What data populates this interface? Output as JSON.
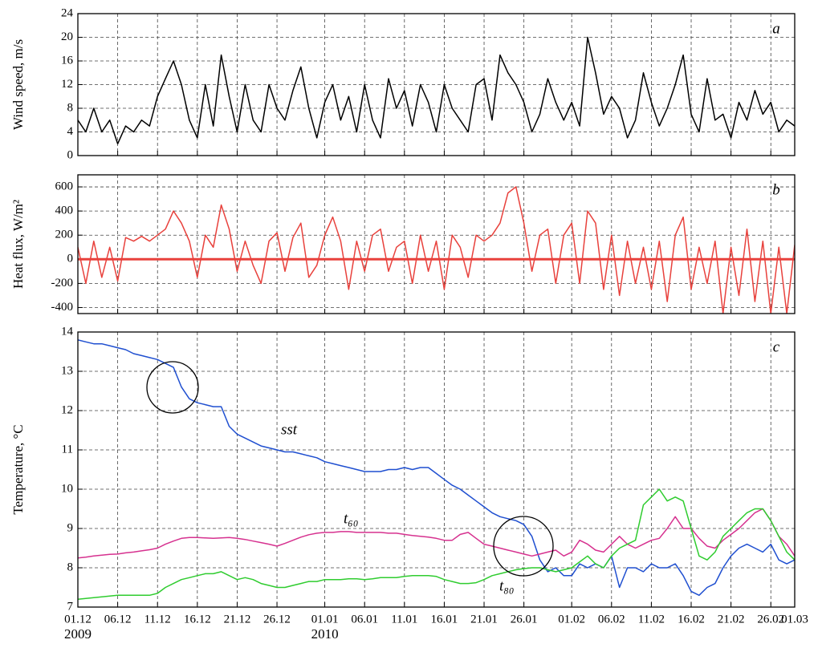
{
  "chart_data": [
    {
      "type": "line",
      "panel_label": "a",
      "ylabel": "Wind speed, m/s",
      "ylim": [
        0,
        24
      ],
      "yticks": [
        0,
        4,
        8,
        12,
        16,
        20,
        24
      ],
      "grid": true,
      "series": [
        {
          "color": "#000000",
          "values": [
            6,
            4,
            8,
            4,
            6,
            2,
            5,
            4,
            6,
            5,
            10,
            13,
            16,
            12,
            6,
            3,
            12,
            5,
            17,
            10,
            4,
            12,
            6,
            4,
            12,
            8,
            6,
            11,
            15,
            8,
            3,
            9,
            12,
            6,
            10,
            4,
            12,
            6,
            3,
            13,
            8,
            11,
            5,
            12,
            9,
            4,
            12,
            8,
            6,
            4,
            12,
            13,
            6,
            17,
            14,
            12,
            9,
            4,
            7,
            13,
            9,
            6,
            9,
            5,
            20,
            14,
            7,
            10,
            8,
            3,
            6,
            14,
            9,
            5,
            8,
            12,
            17,
            7,
            4,
            13,
            6,
            7,
            3,
            9,
            6,
            11,
            7,
            9,
            4,
            6,
            5
          ]
        }
      ]
    },
    {
      "type": "line",
      "panel_label": "b",
      "ylabel": "Heat flux, W/m²",
      "ylim": [
        -450,
        700
      ],
      "yticks": [
        -400,
        -200,
        0,
        200,
        400,
        600
      ],
      "grid": true,
      "reference_line": 0,
      "series": [
        {
          "color": "#e8413c",
          "values": [
            100,
            -200,
            150,
            -150,
            100,
            -180,
            180,
            150,
            190,
            150,
            200,
            250,
            400,
            300,
            150,
            -150,
            200,
            100,
            450,
            250,
            -100,
            150,
            -50,
            -200,
            150,
            220,
            -100,
            180,
            300,
            -150,
            -50,
            200,
            350,
            150,
            -250,
            150,
            -100,
            200,
            250,
            -100,
            100,
            150,
            -200,
            200,
            -100,
            150,
            -250,
            200,
            100,
            -150,
            200,
            150,
            200,
            300,
            550,
            600,
            300,
            -100,
            200,
            250,
            -200,
            200,
            300,
            -200,
            400,
            300,
            -250,
            200,
            -300,
            150,
            -200,
            100,
            -250,
            150,
            -350,
            200,
            350,
            -250,
            100,
            -200,
            150,
            -450,
            100,
            -300,
            250,
            -350,
            150,
            -450,
            100,
            -450,
            120
          ]
        }
      ]
    },
    {
      "type": "line",
      "panel_label": "c",
      "ylabel": "Temperature, °C",
      "ylim": [
        7,
        14
      ],
      "yticks": [
        7,
        8,
        9,
        10,
        11,
        12,
        13,
        14
      ],
      "grid": true,
      "xlim": [
        "2009-12-01",
        "2010-03-01"
      ],
      "xticks": [
        {
          "value": "2009-12-01",
          "label": "01.12"
        },
        {
          "value": "2009-12-06",
          "label": "06.12"
        },
        {
          "value": "2009-12-11",
          "label": "11.12"
        },
        {
          "value": "2009-12-16",
          "label": "16.12"
        },
        {
          "value": "2009-12-21",
          "label": "21.12"
        },
        {
          "value": "2009-12-26",
          "label": "26.12"
        },
        {
          "value": "2010-01-01",
          "label": "01.01"
        },
        {
          "value": "2010-01-06",
          "label": "06.01"
        },
        {
          "value": "2010-01-11",
          "label": "11.01"
        },
        {
          "value": "2010-01-16",
          "label": "16.01"
        },
        {
          "value": "2010-01-21",
          "label": "21.01"
        },
        {
          "value": "2010-01-26",
          "label": "26.01"
        },
        {
          "value": "2010-02-01",
          "label": "01.02"
        },
        {
          "value": "2010-02-06",
          "label": "06.02"
        },
        {
          "value": "2010-02-11",
          "label": "11.02"
        },
        {
          "value": "2010-02-16",
          "label": "16.02"
        },
        {
          "value": "2010-02-21",
          "label": "21.02"
        },
        {
          "value": "2010-02-26",
          "label": "26.02"
        },
        {
          "value": "2010-03-01",
          "label": "01.03"
        }
      ],
      "year_labels": [
        {
          "value": "2009-12-01",
          "label": "2009"
        },
        {
          "value": "2010-01-01",
          "label": "2010"
        }
      ],
      "x": [
        "2009-12-01",
        "2009-12-02",
        "2009-12-03",
        "2009-12-04",
        "2009-12-05",
        "2009-12-06",
        "2009-12-07",
        "2009-12-08",
        "2009-12-09",
        "2009-12-10",
        "2009-12-11",
        "2009-12-12",
        "2009-12-13",
        "2009-12-14",
        "2009-12-15",
        "2009-12-16",
        "2009-12-17",
        "2009-12-18",
        "2009-12-19",
        "2009-12-20",
        "2009-12-21",
        "2009-12-22",
        "2009-12-23",
        "2009-12-24",
        "2009-12-25",
        "2009-12-26",
        "2009-12-27",
        "2009-12-28",
        "2009-12-29",
        "2009-12-30",
        "2009-12-31",
        "2010-01-01",
        "2010-01-02",
        "2010-01-03",
        "2010-01-04",
        "2010-01-05",
        "2010-01-06",
        "2010-01-07",
        "2010-01-08",
        "2010-01-09",
        "2010-01-10",
        "2010-01-11",
        "2010-01-12",
        "2010-01-13",
        "2010-01-14",
        "2010-01-15",
        "2010-01-16",
        "2010-01-17",
        "2010-01-18",
        "2010-01-19",
        "2010-01-20",
        "2010-01-21",
        "2010-01-22",
        "2010-01-23",
        "2010-01-24",
        "2010-01-25",
        "2010-01-26",
        "2010-01-27",
        "2010-01-28",
        "2010-01-29",
        "2010-01-30",
        "2010-01-31",
        "2010-02-01",
        "2010-02-02",
        "2010-02-03",
        "2010-02-04",
        "2010-02-05",
        "2010-02-06",
        "2010-02-07",
        "2010-02-08",
        "2010-02-09",
        "2010-02-10",
        "2010-02-11",
        "2010-02-12",
        "2010-02-13",
        "2010-02-14",
        "2010-02-15",
        "2010-02-16",
        "2010-02-17",
        "2010-02-18",
        "2010-02-19",
        "2010-02-20",
        "2010-02-21",
        "2010-02-22",
        "2010-02-23",
        "2010-02-24",
        "2010-02-25",
        "2010-02-26",
        "2010-02-27",
        "2010-02-28",
        "2010-03-01"
      ],
      "series": [
        {
          "name": "sst",
          "color": "#1f4fd0",
          "values": [
            13.8,
            13.75,
            13.7,
            13.7,
            13.65,
            13.6,
            13.55,
            13.45,
            13.4,
            13.35,
            13.3,
            13.2,
            13.1,
            12.6,
            12.3,
            12.2,
            12.15,
            12.1,
            12.1,
            11.6,
            11.4,
            11.3,
            11.2,
            11.1,
            11.05,
            11.0,
            10.95,
            10.95,
            10.9,
            10.85,
            10.8,
            10.7,
            10.65,
            10.6,
            10.55,
            10.5,
            10.45,
            10.45,
            10.45,
            10.5,
            10.5,
            10.55,
            10.5,
            10.55,
            10.55,
            10.4,
            10.25,
            10.1,
            10.0,
            9.85,
            9.7,
            9.55,
            9.4,
            9.3,
            9.25,
            9.2,
            9.1,
            8.8,
            8.2,
            7.9,
            8.0,
            7.8,
            7.8,
            8.1,
            8.0,
            8.1,
            8.0,
            8.3,
            7.5,
            8.0,
            8.0,
            7.9,
            8.1,
            8.0,
            8.0,
            8.1,
            7.8,
            7.4,
            7.3,
            7.5,
            7.6,
            8.0,
            8.3,
            8.5,
            8.6,
            8.5,
            8.4,
            8.6,
            8.2,
            8.1,
            8.2
          ]
        },
        {
          "name": "t₆₀",
          "color": "#d6318f",
          "values": [
            8.25,
            8.27,
            8.3,
            8.32,
            8.34,
            8.35,
            8.38,
            8.4,
            8.43,
            8.46,
            8.5,
            8.6,
            8.68,
            8.75,
            8.77,
            8.77,
            8.76,
            8.75,
            8.76,
            8.77,
            8.75,
            8.72,
            8.68,
            8.64,
            8.6,
            8.55,
            8.62,
            8.7,
            8.78,
            8.84,
            8.88,
            8.9,
            8.9,
            8.92,
            8.92,
            8.9,
            8.9,
            8.9,
            8.9,
            8.88,
            8.88,
            8.85,
            8.82,
            8.8,
            8.78,
            8.75,
            8.7,
            8.7,
            8.85,
            8.9,
            8.75,
            8.6,
            8.55,
            8.5,
            8.45,
            8.4,
            8.35,
            8.3,
            8.35,
            8.4,
            8.45,
            8.3,
            8.4,
            8.7,
            8.6,
            8.45,
            8.4,
            8.6,
            8.8,
            8.6,
            8.5,
            8.6,
            8.7,
            8.75,
            9.0,
            9.3,
            9.0,
            9.0,
            8.75,
            8.55,
            8.5,
            8.7,
            8.85,
            9.0,
            9.2,
            9.4,
            9.5,
            9.2,
            8.8,
            8.6,
            8.3
          ]
        },
        {
          "name": "t₈₀",
          "color": "#2fcc2f",
          "values": [
            7.2,
            7.22,
            7.24,
            7.26,
            7.28,
            7.3,
            7.3,
            7.3,
            7.3,
            7.3,
            7.35,
            7.5,
            7.6,
            7.7,
            7.75,
            7.8,
            7.85,
            7.85,
            7.9,
            7.8,
            7.7,
            7.75,
            7.7,
            7.6,
            7.55,
            7.5,
            7.5,
            7.55,
            7.6,
            7.65,
            7.65,
            7.7,
            7.7,
            7.7,
            7.72,
            7.72,
            7.7,
            7.72,
            7.75,
            7.75,
            7.75,
            7.78,
            7.8,
            7.8,
            7.8,
            7.78,
            7.7,
            7.65,
            7.6,
            7.6,
            7.62,
            7.7,
            7.8,
            7.85,
            7.9,
            7.95,
            7.98,
            8.0,
            8.0,
            7.95,
            7.9,
            7.95,
            8.0,
            8.15,
            8.3,
            8.1,
            8.0,
            8.3,
            8.5,
            8.6,
            8.7,
            9.6,
            9.8,
            10.0,
            9.7,
            9.8,
            9.7,
            9.0,
            8.3,
            8.2,
            8.4,
            8.8,
            9.0,
            9.2,
            9.4,
            9.5,
            9.5,
            9.2,
            8.8,
            8.4,
            8.2
          ]
        }
      ]
    }
  ]
}
